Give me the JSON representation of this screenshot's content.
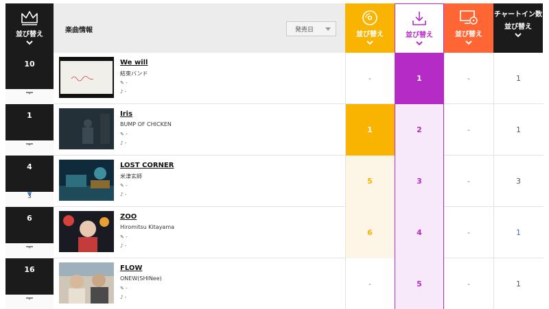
{
  "colors": {
    "sales_accent": "#f8b400",
    "download_accent": "#b52bc6",
    "streaming_accent": "#ff6633",
    "dark": "#1b1b1b"
  },
  "header": {
    "rank_sort_label": "並び替え",
    "info_title": "楽曲情報",
    "sort_select_value": "発売日",
    "col_sales_label": "並び替え",
    "col_download_label": "並び替え",
    "col_streaming_label": "並び替え",
    "col_chart_in_title": "チャートイン数",
    "col_chart_in_sort": "並び替え"
  },
  "rows": [
    {
      "rank": "10",
      "prev": "-",
      "title": "We will",
      "artist": "結束バンド",
      "lyricist": "-",
      "composer": "-",
      "sales": "-",
      "download": "1",
      "streaming": "-",
      "chart_in": "1"
    },
    {
      "rank": "1",
      "prev": "-",
      "title": "Iris",
      "artist": "BUMP OF CHICKEN",
      "lyricist": "-",
      "composer": "-",
      "sales": "1",
      "download": "2",
      "streaming": "-",
      "chart_in": "1"
    },
    {
      "rank": "4",
      "prev": "3",
      "title": "LOST CORNER",
      "artist": "米津玄師",
      "lyricist": "-",
      "composer": "-",
      "sales": "5",
      "download": "3",
      "streaming": "-",
      "chart_in": "3"
    },
    {
      "rank": "6",
      "prev": "-",
      "title": "ZOO",
      "artist": "Hiromitsu Kitayama",
      "lyricist": "-",
      "composer": "-",
      "sales": "6",
      "download": "4",
      "streaming": "-",
      "chart_in": "1"
    },
    {
      "rank": "16",
      "prev": "-",
      "title": "FLOW",
      "artist": "ONEW(SHINee)",
      "lyricist": "-",
      "composer": "-",
      "sales": "-",
      "download": "5",
      "streaming": "-",
      "chart_in": "1"
    }
  ]
}
